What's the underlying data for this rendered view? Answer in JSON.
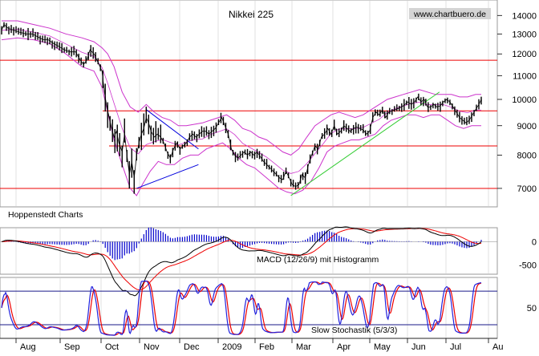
{
  "colors": {
    "price": "#000000",
    "bollinger": "#cc33cc",
    "horizontal_lines": "#ee0000",
    "trendline_blue": "#0000dd",
    "trendline_green": "#33cc33",
    "macd": "#000000",
    "signal": "#ee0000",
    "histogram": "#0000cc",
    "stoch_k": "#2222dd",
    "stoch_d": "#ee0000",
    "stoch_levels": "#1a1a8a",
    "grid": "#cccccc",
    "watermark_bg": "#d4d4d4"
  },
  "chart_data": [
    {
      "type": "line",
      "title": "Nikkei 225",
      "watermark": "www.chartbuero.de",
      "credit": "Hoppenstedt Charts",
      "x_labels": [
        "Aug",
        "Sep",
        "Oct",
        "Nov",
        "Dec",
        "2009",
        "Feb",
        "Mar",
        "Apr",
        "May",
        "Jun",
        "Jul",
        "Au"
      ],
      "y_ticks": [
        14000,
        13000,
        12000,
        11000,
        10000,
        9000,
        8000,
        7000
      ],
      "y_scale": "log",
      "ylim": [
        6500,
        14800
      ],
      "horizontal_levels": [
        11700,
        9550,
        8300,
        7000
      ],
      "price_path": [
        [
          0,
          13200
        ],
        [
          3,
          13500
        ],
        [
          8,
          13300
        ],
        [
          15,
          13200
        ],
        [
          22,
          13100
        ],
        [
          30,
          13000
        ],
        [
          38,
          13000
        ],
        [
          45,
          12850
        ],
        [
          52,
          12700
        ],
        [
          58,
          12700
        ],
        [
          65,
          12500
        ],
        [
          72,
          12350
        ],
        [
          78,
          12200
        ],
        [
          85,
          12100
        ],
        [
          92,
          12100
        ],
        [
          98,
          11700
        ],
        [
          102,
          11500
        ],
        [
          106,
          11700
        ],
        [
          110,
          12200
        ],
        [
          115,
          12000
        ],
        [
          120,
          11600
        ],
        [
          125,
          11200
        ],
        [
          128,
          10300
        ],
        [
          131,
          9700
        ],
        [
          134,
          9300
        ],
        [
          137,
          8900
        ],
        [
          140,
          8600
        ],
        [
          143,
          8800
        ],
        [
          146,
          8400
        ],
        [
          150,
          8100
        ],
        [
          153,
          8700
        ],
        [
          156,
          8000
        ],
        [
          159,
          7400
        ],
        [
          162,
          7800
        ],
        [
          165,
          7300
        ],
        [
          168,
          8000
        ],
        [
          171,
          8400
        ],
        [
          174,
          8700
        ],
        [
          177,
          8900
        ],
        [
          180,
          9300
        ],
        [
          183,
          9100
        ],
        [
          186,
          8800
        ],
        [
          190,
          8600
        ],
        [
          194,
          8700
        ],
        [
          198,
          8600
        ],
        [
          202,
          8400
        ],
        [
          206,
          8100
        ],
        [
          210,
          7900
        ],
        [
          214,
          8200
        ],
        [
          218,
          8400
        ],
        [
          222,
          8200
        ],
        [
          226,
          8300
        ],
        [
          230,
          8400
        ],
        [
          234,
          8600
        ],
        [
          238,
          8700
        ],
        [
          242,
          8600
        ],
        [
          246,
          8700
        ],
        [
          250,
          8800
        ],
        [
          254,
          8800
        ],
        [
          258,
          8700
        ],
        [
          262,
          8800
        ],
        [
          266,
          8900
        ],
        [
          270,
          9100
        ],
        [
          274,
          9300
        ],
        [
          278,
          9000
        ],
        [
          282,
          8700
        ],
        [
          286,
          8200
        ],
        [
          290,
          8000
        ],
        [
          294,
          7900
        ],
        [
          298,
          8000
        ],
        [
          302,
          8100
        ],
        [
          306,
          8000
        ],
        [
          310,
          8100
        ],
        [
          314,
          8000
        ],
        [
          318,
          8100
        ],
        [
          322,
          7950
        ],
        [
          326,
          7800
        ],
        [
          330,
          7700
        ],
        [
          334,
          7600
        ],
        [
          338,
          7500
        ],
        [
          342,
          7400
        ],
        [
          346,
          7300
        ],
        [
          350,
          7250
        ],
        [
          354,
          7500
        ],
        [
          358,
          7300
        ],
        [
          362,
          7100
        ],
        [
          366,
          7050
        ],
        [
          370,
          7100
        ],
        [
          374,
          7400
        ],
        [
          378,
          7300
        ],
        [
          382,
          7700
        ],
        [
          386,
          8000
        ],
        [
          390,
          8300
        ],
        [
          394,
          8200
        ],
        [
          398,
          8600
        ],
        [
          402,
          8700
        ],
        [
          406,
          8900
        ],
        [
          410,
          8700
        ],
        [
          414,
          9000
        ],
        [
          418,
          8700
        ],
        [
          422,
          8800
        ],
        [
          426,
          9000
        ],
        [
          430,
          8900
        ],
        [
          434,
          8800
        ],
        [
          438,
          8900
        ],
        [
          442,
          8950
        ],
        [
          446,
          8900
        ],
        [
          450,
          8850
        ],
        [
          454,
          8700
        ],
        [
          458,
          8800
        ],
        [
          462,
          9300
        ],
        [
          466,
          9500
        ],
        [
          470,
          9400
        ],
        [
          474,
          9600
        ],
        [
          478,
          9300
        ],
        [
          482,
          9500
        ],
        [
          486,
          9550
        ],
        [
          490,
          9600
        ],
        [
          494,
          9650
        ],
        [
          498,
          9700
        ],
        [
          502,
          9800
        ],
        [
          506,
          9900
        ],
        [
          510,
          9800
        ],
        [
          514,
          9900
        ],
        [
          518,
          10100
        ],
        [
          522,
          9900
        ],
        [
          526,
          10000
        ],
        [
          530,
          9700
        ],
        [
          534,
          9700
        ],
        [
          538,
          9800
        ],
        [
          542,
          9700
        ],
        [
          546,
          9750
        ],
        [
          550,
          9900
        ],
        [
          554,
          10000
        ],
        [
          558,
          9900
        ],
        [
          562,
          9700
        ],
        [
          566,
          9500
        ],
        [
          570,
          9300
        ],
        [
          574,
          9200
        ],
        [
          578,
          9100
        ],
        [
          582,
          9200
        ],
        [
          586,
          9400
        ],
        [
          590,
          9600
        ],
        [
          594,
          9800
        ],
        [
          597,
          10000
        ]
      ],
      "bollinger_upper": [
        [
          0,
          13700
        ],
        [
          20,
          13700
        ],
        [
          40,
          13500
        ],
        [
          60,
          13300
        ],
        [
          80,
          13000
        ],
        [
          100,
          12800
        ],
        [
          115,
          12600
        ],
        [
          125,
          12300
        ],
        [
          132,
          12000
        ],
        [
          140,
          11400
        ],
        [
          150,
          10300
        ],
        [
          160,
          9700
        ],
        [
          170,
          9500
        ],
        [
          180,
          9800
        ],
        [
          190,
          9500
        ],
        [
          200,
          9300
        ],
        [
          210,
          9200
        ],
        [
          220,
          9000
        ],
        [
          230,
          9000
        ],
        [
          240,
          9050
        ],
        [
          250,
          9100
        ],
        [
          260,
          9200
        ],
        [
          270,
          9300
        ],
        [
          280,
          9400
        ],
        [
          290,
          9200
        ],
        [
          300,
          8900
        ],
        [
          310,
          8800
        ],
        [
          320,
          8600
        ],
        [
          330,
          8500
        ],
        [
          340,
          8300
        ],
        [
          350,
          8100
        ],
        [
          360,
          8000
        ],
        [
          370,
          8200
        ],
        [
          380,
          8600
        ],
        [
          390,
          9000
        ],
        [
          400,
          9200
        ],
        [
          410,
          9400
        ],
        [
          420,
          9500
        ],
        [
          430,
          9400
        ],
        [
          440,
          9300
        ],
        [
          450,
          9400
        ],
        [
          460,
          9600
        ],
        [
          470,
          9800
        ],
        [
          480,
          10000
        ],
        [
          490,
          10100
        ],
        [
          500,
          10200
        ],
        [
          510,
          10300
        ],
        [
          520,
          10400
        ],
        [
          530,
          10300
        ],
        [
          540,
          10200
        ],
        [
          550,
          10200
        ],
        [
          560,
          10200
        ],
        [
          570,
          10100
        ],
        [
          580,
          10100
        ],
        [
          590,
          10200
        ],
        [
          597,
          10200
        ]
      ],
      "bollinger_lower": [
        [
          0,
          12700
        ],
        [
          20,
          12800
        ],
        [
          40,
          12700
        ],
        [
          60,
          12500
        ],
        [
          80,
          12000
        ],
        [
          100,
          11400
        ],
        [
          115,
          11200
        ],
        [
          125,
          10500
        ],
        [
          132,
          9500
        ],
        [
          140,
          8500
        ],
        [
          150,
          7700
        ],
        [
          160,
          7000
        ],
        [
          168,
          6800
        ],
        [
          175,
          7100
        ],
        [
          185,
          7500
        ],
        [
          195,
          7800
        ],
        [
          205,
          7700
        ],
        [
          215,
          7700
        ],
        [
          225,
          7900
        ],
        [
          235,
          8000
        ],
        [
          245,
          8000
        ],
        [
          255,
          8200
        ],
        [
          265,
          8300
        ],
        [
          275,
          8400
        ],
        [
          285,
          8200
        ],
        [
          295,
          7900
        ],
        [
          305,
          7700
        ],
        [
          315,
          7600
        ],
        [
          325,
          7400
        ],
        [
          335,
          7200
        ],
        [
          345,
          7000
        ],
        [
          355,
          6900
        ],
        [
          365,
          6850
        ],
        [
          375,
          6950
        ],
        [
          385,
          7200
        ],
        [
          395,
          7600
        ],
        [
          405,
          8100
        ],
        [
          415,
          8300
        ],
        [
          425,
          8400
        ],
        [
          435,
          8500
        ],
        [
          445,
          8500
        ],
        [
          455,
          8600
        ],
        [
          465,
          8700
        ],
        [
          475,
          9000
        ],
        [
          485,
          9200
        ],
        [
          495,
          9300
        ],
        [
          505,
          9400
        ],
        [
          515,
          9400
        ],
        [
          525,
          9300
        ],
        [
          535,
          9400
        ],
        [
          545,
          9400
        ],
        [
          555,
          9200
        ],
        [
          565,
          9000
        ],
        [
          575,
          8900
        ],
        [
          585,
          9000
        ],
        [
          597,
          9000
        ]
      ],
      "trendlines": [
        {
          "color": "blue",
          "points": [
            [
              168,
              7000
            ],
            [
              245,
              7700
            ]
          ]
        },
        {
          "color": "blue",
          "points": [
            [
              180,
              9600
            ],
            [
              245,
              8200
            ]
          ]
        },
        {
          "color": "green",
          "points": [
            [
              360,
              6800
            ],
            [
              545,
              10300
            ]
          ]
        }
      ]
    },
    {
      "type": "line",
      "title": "MACD (12/26/9) mit Histogramm",
      "y_ticks": [
        0,
        -500
      ],
      "ylim": [
        -700,
        300
      ]
    },
    {
      "type": "line",
      "title": "Slow Stochastik (5/3/3)",
      "y_ticks": [
        50
      ],
      "levels": [
        80,
        20
      ],
      "ylim": [
        0,
        100
      ]
    }
  ]
}
